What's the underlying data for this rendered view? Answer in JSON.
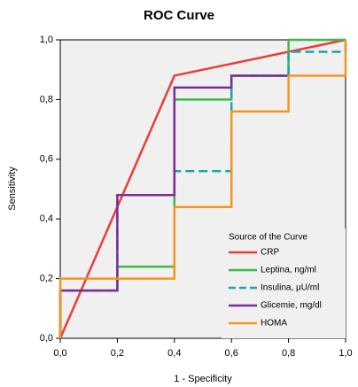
{
  "chart_data": {
    "type": "line",
    "title": "ROC Curve",
    "x_label": "1 - Specificity",
    "y_label": "Sensitivity",
    "xlim": [
      0,
      1
    ],
    "ylim": [
      0,
      1
    ],
    "xticks": [
      {
        "value": 0,
        "label": "0,0"
      },
      {
        "value": 0.2,
        "label": "0,2"
      },
      {
        "value": 0.4,
        "label": "0,4"
      },
      {
        "value": 0.6,
        "label": "0,6"
      },
      {
        "value": 0.8,
        "label": "0,8"
      },
      {
        "value": 1,
        "label": "1,0"
      }
    ],
    "yticks": [
      {
        "value": 0,
        "label": "0,0"
      },
      {
        "value": 0.2,
        "label": "0,2"
      },
      {
        "value": 0.4,
        "label": "0,4"
      },
      {
        "value": 0.6,
        "label": "0,6"
      },
      {
        "value": 0.8,
        "label": "0,8"
      },
      {
        "value": 1,
        "label": "1,0"
      }
    ],
    "legend_title": "Source of the Curve",
    "legend_position": "lower right",
    "series": [
      {
        "name": "CRP",
        "color": "#ee3b3b",
        "x": [
          0,
          0.4,
          0.8,
          1
        ],
        "values": [
          0,
          0.88,
          0.96,
          1
        ]
      },
      {
        "name": "Leptina, ng/ml",
        "color": "#3cb94a",
        "x": [
          0,
          0,
          0.2,
          0.2,
          0.4,
          0.4,
          0.6,
          0.6,
          0.8,
          0.8,
          1
        ],
        "values": [
          0,
          0.16,
          0.16,
          0.24,
          0.24,
          0.8,
          0.8,
          0.88,
          0.88,
          1,
          1
        ]
      },
      {
        "name": "Insulina, µU/ml",
        "color": "#1aa6a6",
        "line_style": "dashed",
        "x": [
          0,
          0,
          0.2,
          0.2,
          0.4,
          0.4,
          0.6,
          0.6,
          0.8,
          0.8,
          1,
          1
        ],
        "values": [
          0,
          0.16,
          0.16,
          0.48,
          0.48,
          0.56,
          0.56,
          0.88,
          0.88,
          0.96,
          0.96,
          1
        ]
      },
      {
        "name": "Glicemie, mg/dl",
        "color": "#7b2d94",
        "x": [
          0,
          0,
          0.2,
          0.2,
          0.4,
          0.4,
          0.6,
          0.6,
          0.8
        ],
        "values": [
          0,
          0.16,
          0.16,
          0.48,
          0.48,
          0.84,
          0.84,
          0.88,
          0.88
        ]
      },
      {
        "name": "HOMA",
        "color": "#f7941d",
        "x": [
          0,
          0,
          0.4,
          0.4,
          0.6,
          0.6,
          0.8,
          0.8,
          1,
          1
        ],
        "values": [
          0,
          0.2,
          0.2,
          0.44,
          0.44,
          0.76,
          0.76,
          0.88,
          0.88,
          1
        ]
      }
    ]
  }
}
